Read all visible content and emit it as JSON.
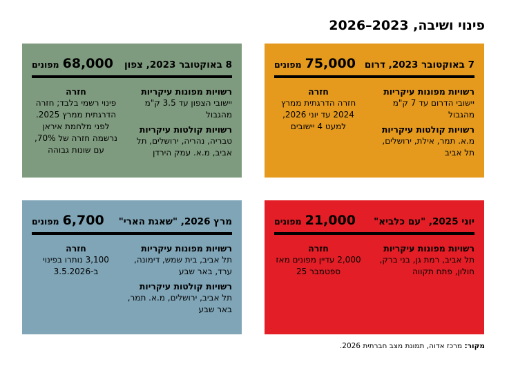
{
  "title": "פינוי ושיבה, 2023–2026",
  "cards": {
    "south": {
      "header": "7 באוקטובר 2023, דרום",
      "count": "75,000",
      "unit": "מפונים",
      "main_label": "רשויות מפונות עיקריות",
      "main_text": "יישובי הדרום עד 7 ק\"מ מהגבול",
      "host_label": "רשויות קולטות עיקריות",
      "host_text": "מ.א. תמר, אילת, ירושלים, תל אביב",
      "return_label": "חזרה",
      "return_text": "חזרה הדרגתית ממרץ 2024 עד יוני 2026, למעט 4 יישובים"
    },
    "north": {
      "header": "8 באוקטובר 2023, צפון",
      "count": "68,000",
      "unit": "מפונים",
      "main_label": "רשויות מפונות עיקריות",
      "main_text": "יישובי הצפון עד 3.5 ק\"מ מהגבול",
      "host_label": "רשויות קולטות עיקריות",
      "host_text": "טבריה, נהריה, ירושלים, תל אביב, מ.א. עמק הירדן",
      "return_label": "חזרה",
      "return_text": "פינוי רשמי בלבד; חזרה הדרגתית ממרץ 2025. לפני מלחמת איראן נרשמה חזרה של 70%, עם שונות גבוהה"
    },
    "iran": {
      "header": "יוני 2025, \"עם כלביא\"",
      "count": "21,000",
      "unit": "מפונים",
      "main_label": "רשויות מפונות עיקריות",
      "main_text": "תל אביב, רמת גן, בני ברק, חולון, פתח תקווה",
      "return_label": "חזרה",
      "return_text": "2,000 עדיין מפונים מאז ספטמבר 25"
    },
    "lion": {
      "header": "מרץ 2026, \"שאגת הארי\"",
      "count": "6,700",
      "unit": "מפונים",
      "main_label": "רשויות מפונות עיקריות",
      "main_text": "תל אביב, בית שמש, דימונה, ערד, באר שבע",
      "host_label": "רשויות קולטות עיקריות",
      "host_text": "תל אביב, ירושלים, מ.א. תמר, באר שבע",
      "return_label": "חזרה",
      "return_text": "3,100 נותרו בפינוי ב-3.5.2026"
    }
  },
  "source": {
    "label": "מקור:",
    "text": " מרכז אדוה, תמונת מצב חברתית 2026."
  }
}
